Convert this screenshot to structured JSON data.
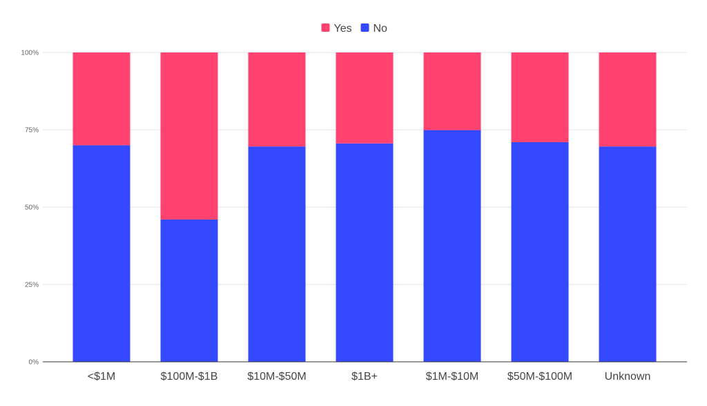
{
  "chart_data": {
    "type": "bar",
    "stacked": true,
    "percent_stacked": true,
    "categories": [
      "<$1M",
      "$100M-$1B",
      "$10M-$50M",
      "$1B+",
      "$1M-$10M",
      "$50M-$100M",
      "Unknown"
    ],
    "series": [
      {
        "name": "No",
        "color": "#3448ff",
        "values": [
          70,
          46,
          69.6,
          70.6,
          74.9,
          71,
          69.6
        ]
      },
      {
        "name": "Yes",
        "color": "#ff426f",
        "values": [
          30,
          54,
          30.4,
          29.4,
          25.1,
          29,
          30.4
        ]
      }
    ],
    "legend_order": [
      "Yes",
      "No"
    ],
    "legend_position": "top-center",
    "y_ticks": [
      "0%",
      "25%",
      "50%",
      "75%",
      "100%"
    ],
    "ylim": [
      0,
      100
    ],
    "grid": true,
    "gridline_color": "#e0e0e0",
    "axis_color": "#333333"
  }
}
